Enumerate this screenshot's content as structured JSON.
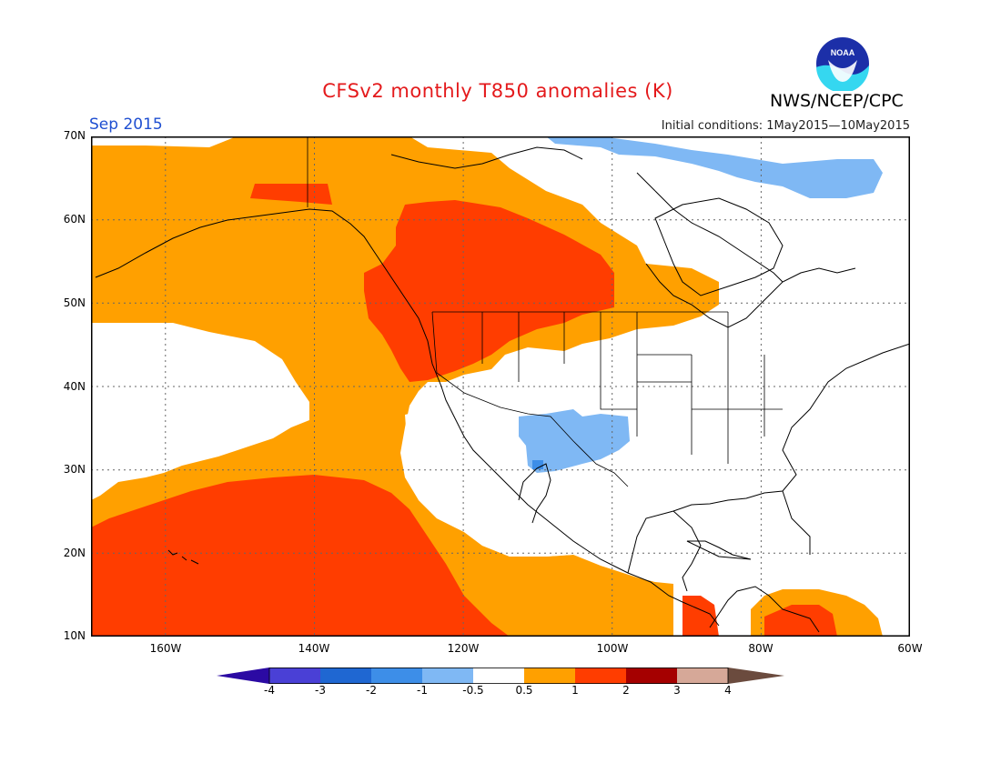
{
  "title": "CFSv2 monthly T850 anomalies (K)",
  "period": "Sep 2015",
  "initial_conditions": "Initial conditions: 1May2015—10May2015",
  "agency": "NWS/NCEP/CPC",
  "logo_text": "NOAA",
  "map": {
    "projection": "cylindrical",
    "lon_range": [
      -170,
      -60
    ],
    "lat_range": [
      10,
      70
    ],
    "y_ticks": [
      "70N",
      "60N",
      "50N",
      "40N",
      "30N",
      "20N",
      "10N"
    ],
    "x_ticks": [
      "160W",
      "140W",
      "120W",
      "100W",
      "80W",
      "60W"
    ],
    "grid": "dotted"
  },
  "legend": {
    "labels": [
      "-4",
      "-3",
      "-2",
      "-1",
      "-0.5",
      "0.5",
      "1",
      "2",
      "3",
      "4"
    ],
    "colors": [
      "#2b0aa3",
      "#4a40d6",
      "#1f67d2",
      "#3d8ee8",
      "#7fb8f4",
      "#ffffff",
      "#ffa000",
      "#ff3d00",
      "#a50000",
      "#d6a898",
      "#6b4b3e"
    ]
  },
  "anomaly_colors": {
    "plus_0_5_to_1": "#ffa000",
    "plus_1_to_2": "#ff3d00",
    "minus_1_to_minus_0_5": "#7fb8f4",
    "minus_2_to_minus_1": "#3d8ee8"
  }
}
